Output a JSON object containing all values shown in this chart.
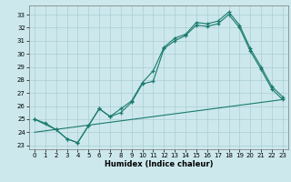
{
  "xlabel": "Humidex (Indice chaleur)",
  "bg_color": "#cce8ec",
  "line_color": "#1a7a6e",
  "grid_color": "#aacdd4",
  "xlim": [
    -0.5,
    23.5
  ],
  "ylim": [
    22.7,
    33.7
  ],
  "yticks": [
    23,
    24,
    25,
    26,
    27,
    28,
    29,
    30,
    31,
    32,
    33
  ],
  "xticks": [
    0,
    1,
    2,
    3,
    4,
    5,
    6,
    7,
    8,
    9,
    10,
    11,
    12,
    13,
    14,
    15,
    16,
    17,
    18,
    19,
    20,
    21,
    22,
    23
  ],
  "line1_x": [
    0,
    1,
    2,
    3,
    4,
    5,
    6,
    7,
    8,
    9,
    10,
    11,
    12,
    13,
    14,
    15,
    16,
    17,
    18,
    19,
    20,
    21,
    22,
    23
  ],
  "line1_y": [
    25.0,
    24.7,
    24.2,
    23.5,
    23.2,
    24.5,
    25.8,
    25.2,
    25.8,
    26.4,
    27.8,
    28.7,
    30.5,
    31.2,
    31.5,
    32.4,
    32.3,
    32.5,
    33.2,
    32.2,
    30.4,
    29.0,
    27.5,
    26.7
  ],
  "line2_x": [
    0,
    2,
    3,
    4,
    5,
    6,
    7,
    8,
    9,
    10,
    11,
    12,
    13,
    14,
    15,
    16,
    17,
    18,
    19,
    20,
    21,
    22,
    23
  ],
  "line2_y": [
    25.0,
    24.2,
    23.5,
    23.2,
    24.5,
    25.8,
    25.2,
    25.5,
    26.3,
    27.7,
    27.9,
    30.4,
    31.0,
    31.4,
    32.2,
    32.1,
    32.3,
    33.0,
    32.0,
    30.2,
    28.8,
    27.3,
    26.5
  ],
  "line3_x": [
    0,
    23
  ],
  "line3_y": [
    24.0,
    26.5
  ]
}
